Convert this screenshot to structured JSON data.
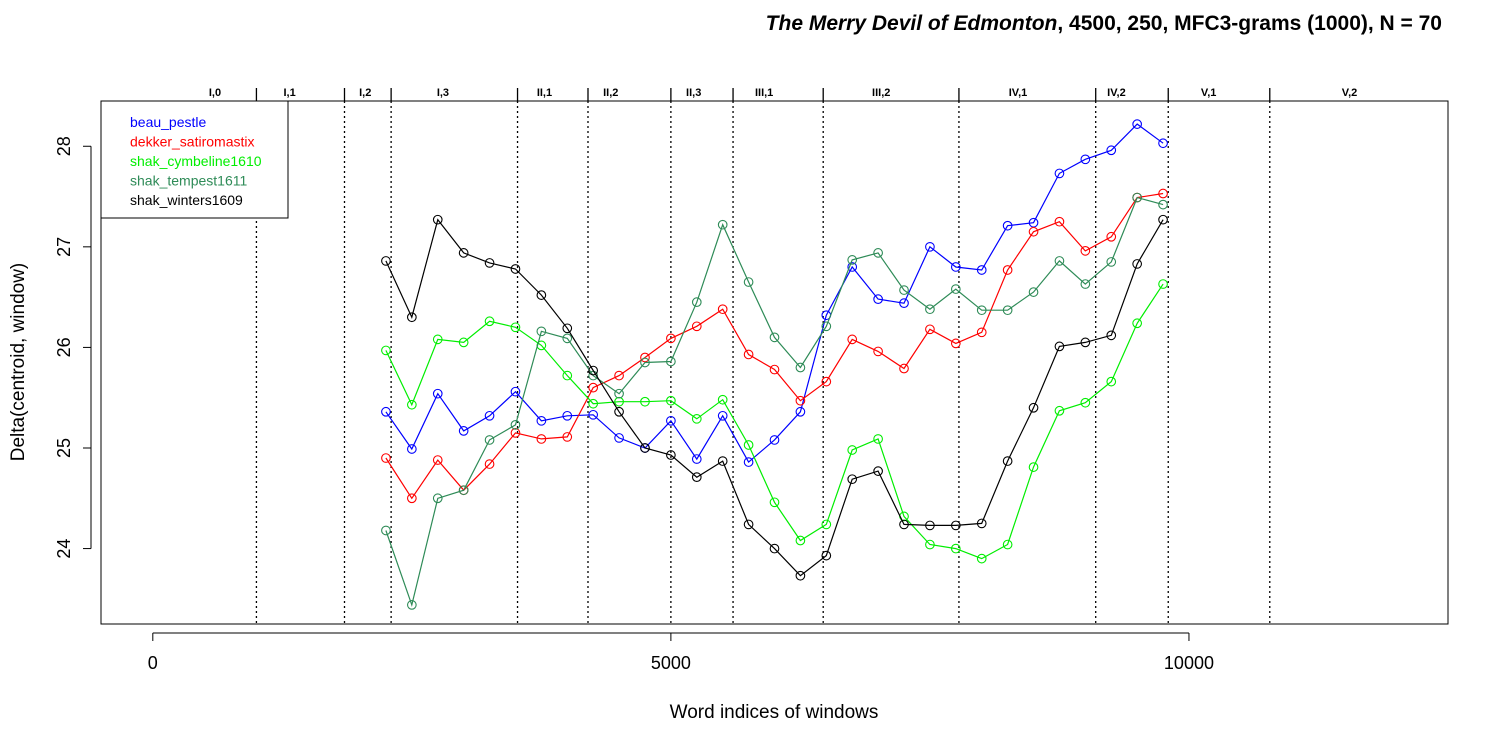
{
  "chart_data": {
    "type": "line",
    "title_italic": "The Merry Devil of Edmonton",
    "title_rest": ", 4500, 250, MFC3-grams (1000), N = 70",
    "xlabel": "Word indices of windows",
    "ylabel": "Delta(centroid, window)",
    "xlim": [
      -500,
      12500
    ],
    "ylim": [
      23.25,
      28.45
    ],
    "x_ticks": [
      0,
      5000,
      10000
    ],
    "y_ticks": [
      24,
      25,
      26,
      27,
      28
    ],
    "grid": false,
    "legend_position": "top-left",
    "act_boundaries": [
      1000,
      1850,
      2300,
      3520,
      4200,
      5000,
      5600,
      6470,
      7780,
      9100,
      9800,
      10780
    ],
    "acts": [
      {
        "label": "I,0",
        "x": 600
      },
      {
        "label": "I,1",
        "x": 1320
      },
      {
        "label": "I,2",
        "x": 2050
      },
      {
        "label": "I,3",
        "x": 2800
      },
      {
        "label": "II,1",
        "x": 3780
      },
      {
        "label": "II,2",
        "x": 4420
      },
      {
        "label": "II,3",
        "x": 5220
      },
      {
        "label": "III,1",
        "x": 5900
      },
      {
        "label": "III,2",
        "x": 7030
      },
      {
        "label": "IV,1",
        "x": 8350
      },
      {
        "label": "IV,2",
        "x": 9300
      },
      {
        "label": "V,1",
        "x": 10190
      },
      {
        "label": "V,2",
        "x": 11550
      }
    ],
    "x": [
      2250,
      2500,
      2750,
      3000,
      3250,
      3500,
      3750,
      4000,
      4250,
      4500,
      4750,
      5000,
      5250,
      5500,
      5750,
      6000,
      6250,
      6500,
      6750,
      7000,
      7250,
      7500,
      7750,
      8000,
      8250,
      8500,
      8750,
      9000,
      9250,
      9500,
      9750
    ],
    "series": [
      {
        "name": "beau_pestle",
        "color": "#0000ff",
        "values": [
          25.36,
          24.99,
          25.54,
          25.17,
          25.32,
          25.56,
          25.27,
          25.32,
          25.33,
          25.1,
          25.0,
          25.27,
          24.89,
          25.32,
          24.86,
          25.08,
          25.36,
          26.32,
          26.8,
          26.48,
          26.44,
          27.0,
          26.8,
          26.77,
          27.21,
          27.24,
          27.73,
          27.87,
          27.96,
          28.22,
          28.03
        ]
      },
      {
        "name": "dekker_satiromastix",
        "color": "#ff0000",
        "values": [
          24.9,
          24.5,
          24.88,
          24.58,
          24.84,
          25.15,
          25.09,
          25.11,
          25.6,
          25.72,
          25.9,
          26.09,
          26.21,
          26.38,
          25.93,
          25.78,
          25.47,
          25.66,
          26.08,
          25.96,
          25.79,
          26.18,
          26.04,
          26.15,
          26.77,
          27.15,
          27.25,
          26.96,
          27.1,
          27.49,
          27.53
        ]
      },
      {
        "name": "shak_cymbeline1610",
        "color": "#00ee00",
        "values": [
          25.97,
          25.43,
          26.08,
          26.05,
          26.26,
          26.2,
          26.02,
          25.72,
          25.44,
          25.46,
          25.46,
          25.47,
          25.29,
          25.48,
          25.03,
          24.46,
          24.08,
          24.24,
          24.98,
          25.09,
          24.32,
          24.04,
          24.0,
          23.9,
          24.04,
          24.81,
          25.37,
          25.45,
          25.66,
          26.24,
          26.63
        ]
      },
      {
        "name": "shak_tempest1611",
        "color": "#2e8b57",
        "values": [
          24.18,
          23.44,
          24.5,
          24.58,
          25.08,
          25.23,
          26.16,
          26.09,
          25.72,
          25.54,
          25.85,
          25.86,
          26.45,
          27.22,
          26.65,
          26.1,
          25.8,
          26.21,
          26.87,
          26.94,
          26.57,
          26.38,
          26.58,
          26.37,
          26.37,
          26.55,
          26.86,
          26.63,
          26.85,
          27.49,
          27.42
        ]
      },
      {
        "name": "shak_winters1609",
        "color": "#000000",
        "values": [
          26.86,
          26.3,
          27.27,
          26.94,
          26.84,
          26.78,
          26.52,
          26.19,
          25.77,
          25.36,
          25.0,
          24.93,
          24.71,
          24.87,
          24.24,
          24.0,
          23.73,
          23.93,
          24.69,
          24.77,
          24.24,
          24.23,
          24.23,
          24.25,
          24.87,
          25.4,
          26.01,
          26.05,
          26.12,
          26.83,
          27.27
        ]
      }
    ]
  }
}
